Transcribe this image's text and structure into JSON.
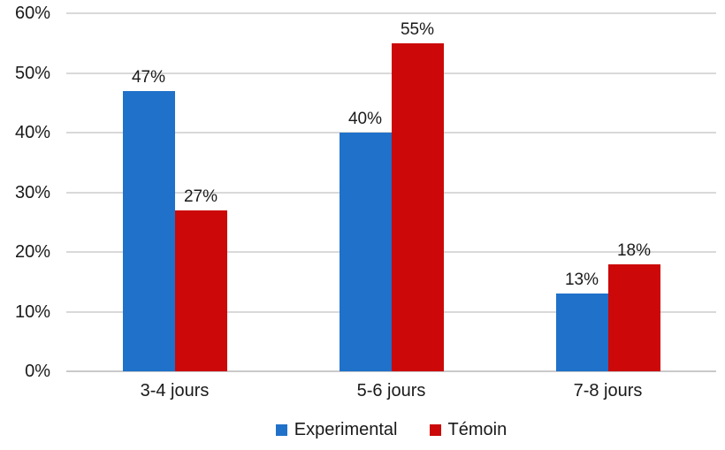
{
  "chart_data": {
    "type": "bar",
    "title": "",
    "xlabel": "",
    "ylabel": "",
    "categories": [
      "3-4 jours",
      "5-6 jours",
      "7-8 jours"
    ],
    "series": [
      {
        "name": "Experimental",
        "color": "#2071C9",
        "values": [
          47,
          40,
          13
        ],
        "labels": [
          "47%",
          "40%",
          "13%"
        ]
      },
      {
        "name": "Témoin",
        "color": "#CC0808",
        "values": [
          27,
          55,
          18
        ],
        "labels": [
          "27%",
          "55%",
          "18%"
        ]
      }
    ],
    "y_axis": {
      "min": 0,
      "max": 60,
      "step": 10,
      "ticks": [
        "0%",
        "10%",
        "20%",
        "30%",
        "40%",
        "50%",
        "60%"
      ]
    },
    "grid": true,
    "legend": {
      "position": "bottom",
      "entries": [
        "Experimental",
        "Témoin"
      ]
    },
    "colors": {
      "gridline": "#D9D9D9",
      "axis_line": "#C9C9C9",
      "text": "#1A1A1A",
      "background": "#FFFFFF"
    }
  }
}
